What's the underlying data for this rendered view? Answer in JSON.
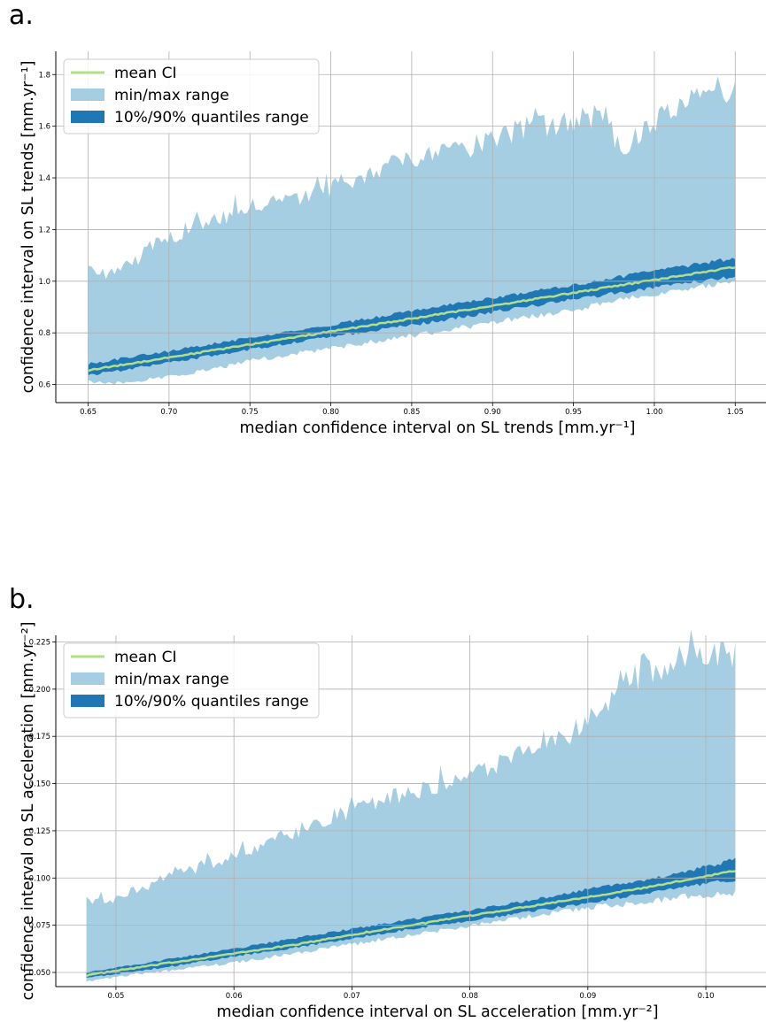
{
  "panels": {
    "a": {
      "label": "a."
    },
    "b": {
      "label": "b."
    }
  },
  "colors": {
    "mean": "#b2df8a",
    "minmax": "#a6cee3",
    "quantile": "#1f78b4",
    "grid": "#b0b0b0"
  },
  "chart_data": [
    {
      "type": "area",
      "panel": "a",
      "xlabel": "median confidence interval on SL trends [mm.yr⁻¹]",
      "ylabel": "confidence interval on SL trends [mm.yr⁻¹]",
      "xlim": [
        0.63,
        1.069
      ],
      "ylim": [
        0.53,
        1.89
      ],
      "xticks": [
        "0.65",
        "0.70",
        "0.75",
        "0.80",
        "0.85",
        "0.90",
        "0.95",
        "1.00",
        "1.05"
      ],
      "yticks": [
        "0.6",
        "0.8",
        "1.0",
        "1.2",
        "1.4",
        "1.6",
        "1.8"
      ],
      "grid": true,
      "legend_position": "top-left",
      "legend": [
        "mean CI",
        "min/max range",
        "10%/90% quantiles range"
      ],
      "series": [
        {
          "name": "mean CI",
          "kind": "line",
          "x": [
            0.65,
            0.7,
            0.75,
            0.8,
            0.85,
            0.9,
            0.95,
            1.0,
            1.05
          ],
          "y": [
            0.655,
            0.705,
            0.755,
            0.805,
            0.855,
            0.905,
            0.955,
            1.005,
            1.055
          ]
        },
        {
          "name": "min/max range",
          "kind": "band",
          "x": [
            0.65,
            0.66,
            0.68,
            0.7,
            0.72,
            0.75,
            0.78,
            0.8,
            0.82,
            0.85,
            0.88,
            0.9,
            0.92,
            0.95,
            0.97,
            0.98,
            1.0,
            1.02,
            1.03,
            1.04,
            1.05
          ],
          "upper": [
            1.06,
            1.03,
            1.12,
            1.21,
            1.25,
            1.33,
            1.36,
            1.4,
            1.45,
            1.52,
            1.55,
            1.6,
            1.64,
            1.66,
            1.7,
            1.5,
            1.66,
            1.76,
            1.8,
            1.75,
            1.81
          ],
          "lower": [
            0.62,
            0.61,
            0.62,
            0.64,
            0.66,
            0.7,
            0.73,
            0.75,
            0.77,
            0.8,
            0.83,
            0.85,
            0.87,
            0.9,
            0.93,
            0.94,
            0.96,
            0.98,
            0.99,
            1.0,
            1.01
          ]
        },
        {
          "name": "10%/90% quantiles range",
          "kind": "band",
          "x": [
            0.65,
            0.7,
            0.75,
            0.8,
            0.85,
            0.9,
            0.95,
            1.0,
            1.05
          ],
          "upper": [
            0.68,
            0.73,
            0.78,
            0.83,
            0.885,
            0.935,
            0.985,
            1.04,
            1.09
          ],
          "lower": [
            0.635,
            0.685,
            0.735,
            0.785,
            0.83,
            0.88,
            0.93,
            0.975,
            1.02
          ]
        }
      ]
    },
    {
      "type": "area",
      "panel": "b",
      "xlabel": "median confidence interval on SL acceleration [mm.yr⁻²]",
      "ylabel": "confidence interval on SL acceleration [mm.yr⁻²]",
      "xlim": [
        0.0449,
        0.1051
      ],
      "ylim": [
        0.0425,
        0.2285
      ],
      "xticks": [
        "0.05",
        "0.06",
        "0.07",
        "0.08",
        "0.09",
        "0.10"
      ],
      "yticks": [
        "0.050",
        "0.075",
        "0.100",
        "0.125",
        "0.150",
        "0.175",
        "0.200",
        "0.225"
      ],
      "grid": true,
      "legend_position": "top-left",
      "legend": [
        "mean CI",
        "min/max range",
        "10%/90% quantiles range"
      ],
      "series": [
        {
          "name": "mean CI",
          "kind": "line",
          "x": [
            0.0475,
            0.055,
            0.06,
            0.065,
            0.07,
            0.075,
            0.08,
            0.085,
            0.09,
            0.095,
            0.1,
            0.1025
          ],
          "y": [
            0.0485,
            0.0555,
            0.06,
            0.0645,
            0.07,
            0.075,
            0.08,
            0.085,
            0.09,
            0.095,
            0.101,
            0.104
          ]
        },
        {
          "name": "min/max range",
          "kind": "band",
          "x": [
            0.0475,
            0.05,
            0.052,
            0.055,
            0.06,
            0.065,
            0.07,
            0.075,
            0.08,
            0.085,
            0.088,
            0.09,
            0.093,
            0.095,
            0.097,
            0.099,
            0.1025
          ],
          "upper": [
            0.09,
            0.092,
            0.097,
            0.105,
            0.115,
            0.128,
            0.14,
            0.15,
            0.16,
            0.172,
            0.18,
            0.19,
            0.205,
            0.215,
            0.222,
            0.226,
            0.226
          ],
          "lower": [
            0.046,
            0.048,
            0.05,
            0.052,
            0.056,
            0.061,
            0.066,
            0.071,
            0.076,
            0.081,
            0.084,
            0.086,
            0.088,
            0.09,
            0.091,
            0.093,
            0.094
          ]
        },
        {
          "name": "10%/90% quantiles range",
          "kind": "band",
          "x": [
            0.0475,
            0.055,
            0.06,
            0.065,
            0.07,
            0.075,
            0.08,
            0.085,
            0.09,
            0.095,
            0.1,
            0.1025
          ],
          "upper": [
            0.05,
            0.0575,
            0.0625,
            0.068,
            0.073,
            0.078,
            0.083,
            0.088,
            0.094,
            0.099,
            0.106,
            0.11
          ],
          "lower": [
            0.047,
            0.0535,
            0.0585,
            0.063,
            0.068,
            0.073,
            0.0775,
            0.082,
            0.087,
            0.092,
            0.097,
            0.099
          ]
        }
      ]
    }
  ]
}
